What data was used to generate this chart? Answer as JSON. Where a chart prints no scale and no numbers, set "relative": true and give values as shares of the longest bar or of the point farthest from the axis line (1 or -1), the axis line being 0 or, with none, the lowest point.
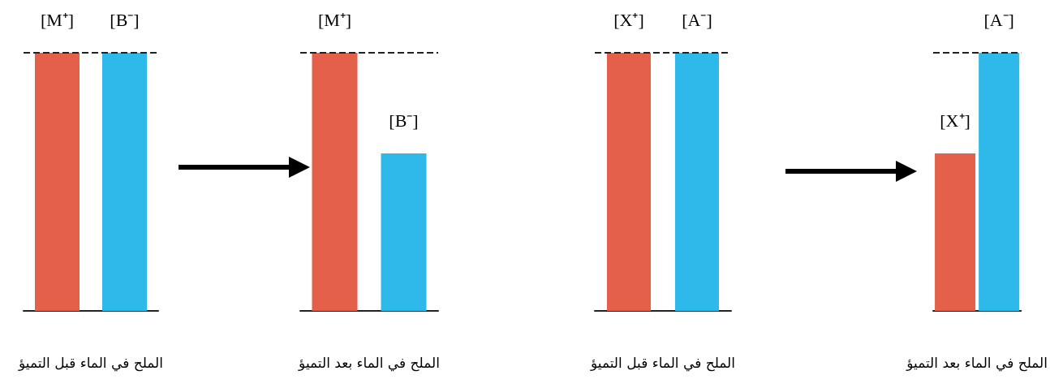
{
  "chart_data": [
    {
      "type": "bar",
      "relative": true,
      "xlabel": "الملح في الماء قبل التميؤ",
      "categories": [
        "[M⁺]",
        "[B⁻]"
      ],
      "colors": [
        "#e4604a",
        "#2fb9ea"
      ],
      "values": [
        1,
        1
      ],
      "ref_lines": [
        {
          "axis": "y",
          "value": 1,
          "line_style": "dashed",
          "color": "#222222"
        }
      ]
    },
    {
      "type": "bar",
      "relative": true,
      "xlabel": "الملح في الماء بعد التميؤ",
      "categories": [
        "[M⁺]",
        "[B⁻]"
      ],
      "colors": [
        "#e4604a",
        "#2fb9ea"
      ],
      "values": [
        1,
        0.61
      ],
      "ref_lines": [
        {
          "axis": "y",
          "value": 1,
          "line_style": "dashed",
          "color": "#222222"
        }
      ]
    },
    {
      "type": "bar",
      "relative": true,
      "xlabel": "الملح في الماء قبل التميؤ",
      "categories": [
        "[X⁺]",
        "[A⁻]"
      ],
      "colors": [
        "#e4604a",
        "#2fb9ea"
      ],
      "values": [
        1,
        1
      ],
      "ref_lines": [
        {
          "axis": "y",
          "value": 1,
          "line_style": "dashed",
          "color": "#222222"
        }
      ]
    },
    {
      "type": "bar",
      "relative": true,
      "xlabel": "الملح في الماء بعد التميؤ",
      "categories": [
        "[X⁺]",
        "[A⁻]"
      ],
      "colors": [
        "#e4604a",
        "#2fb9ea"
      ],
      "values": [
        0.61,
        1
      ],
      "ref_lines": [
        {
          "axis": "y",
          "value": 1,
          "line_style": "dashed",
          "color": "#222222"
        }
      ]
    }
  ]
}
